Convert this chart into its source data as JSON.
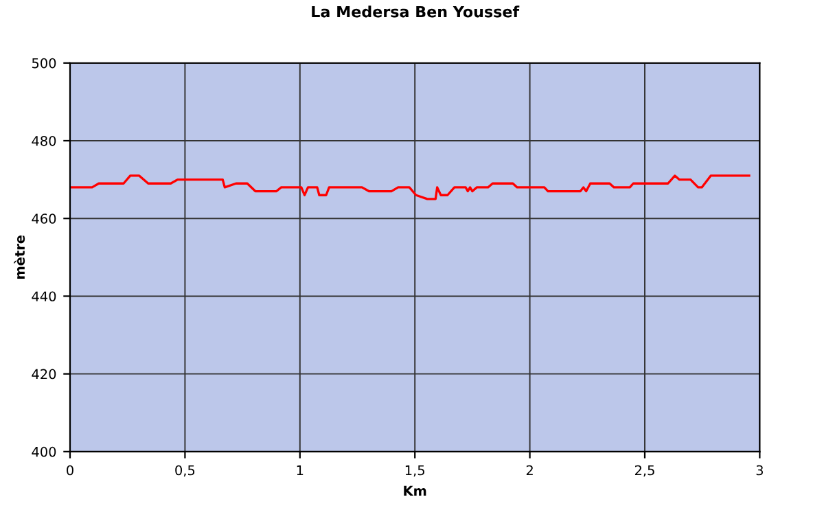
{
  "chart_data": {
    "type": "line",
    "title": "La Medersa Ben Youssef",
    "xlabel": "Km",
    "ylabel": "mètre",
    "x": [
      0,
      0.096,
      0.125,
      0.233,
      0.262,
      0.301,
      0.34,
      0.438,
      0.468,
      0.664,
      0.673,
      0.722,
      0.771,
      0.806,
      0.898,
      0.918,
      1.006,
      1.02,
      1.035,
      1.075,
      1.084,
      1.114,
      1.127,
      1.27,
      1.3,
      1.398,
      1.427,
      1.476,
      1.505,
      1.554,
      1.59,
      1.597,
      1.613,
      1.642,
      1.672,
      1.721,
      1.73,
      1.74,
      1.75,
      1.769,
      1.818,
      1.838,
      1.926,
      1.945,
      2.063,
      2.079,
      2.22,
      2.233,
      2.245,
      2.263,
      2.347,
      2.366,
      2.435,
      2.45,
      2.601,
      2.631,
      2.65,
      2.699,
      2.732,
      2.748,
      2.787,
      2.954
    ],
    "series": [
      {
        "color": "#ff0000",
        "values": [
          468,
          468,
          469,
          469,
          471,
          471,
          469,
          469,
          470,
          470,
          468,
          469,
          469,
          467,
          467,
          468,
          468,
          466,
          468,
          468,
          466,
          466,
          468,
          468,
          467,
          467,
          468,
          468,
          466,
          465,
          465,
          468,
          466,
          466,
          468,
          468,
          467,
          468,
          467,
          468,
          468,
          469,
          469,
          468,
          468,
          467,
          467,
          468,
          467,
          469,
          469,
          468,
          468,
          469,
          469,
          471,
          470,
          470,
          468,
          468,
          471,
          471
        ]
      }
    ],
    "xlim": [
      0,
      3
    ],
    "xticks": [
      0,
      {
        "value": 0.5,
        "label": "0,5"
      },
      1,
      {
        "value": 1.5,
        "label": "1,5"
      },
      2,
      {
        "value": 2.5,
        "label": "2,5"
      },
      3
    ],
    "ylim": [
      400,
      500
    ],
    "yticks": [
      400,
      420,
      440,
      460,
      480,
      500
    ],
    "grid": true,
    "marker": "none",
    "line_style": "solid"
  }
}
